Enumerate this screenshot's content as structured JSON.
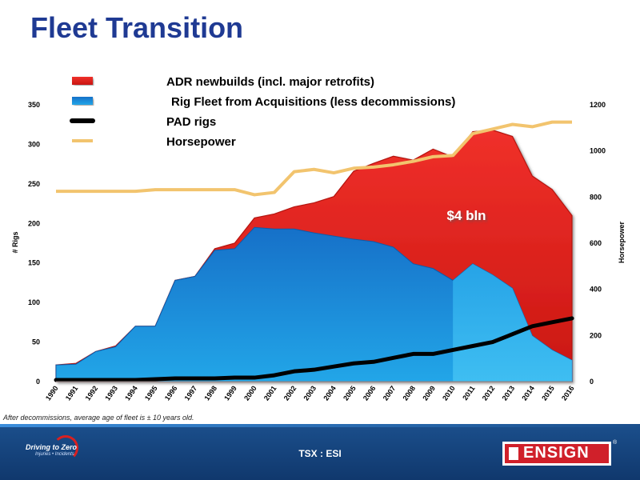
{
  "slide": {
    "title": "Fleet Transition",
    "footnote": "After decommissions, average age of fleet is ± 10 years old.",
    "ticker": "TSX : ESI",
    "logo_left_text": "Driving to Zero",
    "logo_left_sub": "Injuries • Incidents",
    "logo_right_text": "ENSIGN"
  },
  "chart_data": {
    "type": "area",
    "years": [
      "1990",
      "1991",
      "1992",
      "1993",
      "1994",
      "1995",
      "1996",
      "1997",
      "1998",
      "1999",
      "2000",
      "2001",
      "2002",
      "2003",
      "2004",
      "2005",
      "2006",
      "2007",
      "2008",
      "2009",
      "2010",
      "2011",
      "2012",
      "2013",
      "2014",
      "2015",
      "2016"
    ],
    "ylabel": "# Rigs",
    "y2label": "Horsepower",
    "ylim": [
      0,
      350
    ],
    "y2lim": [
      0,
      1200
    ],
    "yticks": [
      0,
      50,
      100,
      150,
      200,
      250,
      300,
      350
    ],
    "y2ticks": [
      0,
      200,
      400,
      600,
      800,
      1000,
      1200
    ],
    "annotation": "$4 bln",
    "colors": {
      "adr": "#e52320",
      "adr_dark": "#9a0f0f",
      "fleet": "#1a7fd6",
      "fleet_light": "#2fb4ee",
      "pad": "#000000",
      "hp": "#f2c46e",
      "annotation": "#ffffff"
    },
    "series": [
      {
        "name": "ADR newbuilds (incl. major retrofits)",
        "kind": "stacked-area-top",
        "values": [
          21,
          23,
          38,
          45,
          70,
          70,
          128,
          133,
          168,
          175,
          207,
          212,
          221,
          226,
          234,
          266,
          276,
          285,
          280,
          294,
          284,
          316,
          318,
          310,
          260,
          243,
          210
        ]
      },
      {
        "name": "Rig Fleet from Acquisitions (less decommissions)",
        "kind": "area",
        "values": [
          21,
          22,
          38,
          44,
          70,
          70,
          128,
          133,
          166,
          168,
          195,
          193,
          193,
          188,
          184,
          180,
          177,
          170,
          149,
          143,
          128,
          149,
          135,
          118,
          58,
          40,
          27
        ]
      },
      {
        "name": "PAD rigs",
        "kind": "line",
        "values": [
          2,
          2,
          2,
          2,
          2,
          3,
          4,
          4,
          4,
          5,
          5,
          8,
          13,
          15,
          19,
          23,
          25,
          30,
          35,
          35,
          40,
          45,
          50,
          60,
          70,
          75,
          80
        ]
      },
      {
        "name": "Horsepower",
        "kind": "line-secondary",
        "values": [
          825,
          825,
          825,
          825,
          825,
          832,
          832,
          832,
          832,
          832,
          810,
          820,
          910,
          920,
          905,
          925,
          930,
          940,
          955,
          975,
          980,
          1075,
          1095,
          1115,
          1105,
          1125,
          1125
        ]
      }
    ]
  }
}
